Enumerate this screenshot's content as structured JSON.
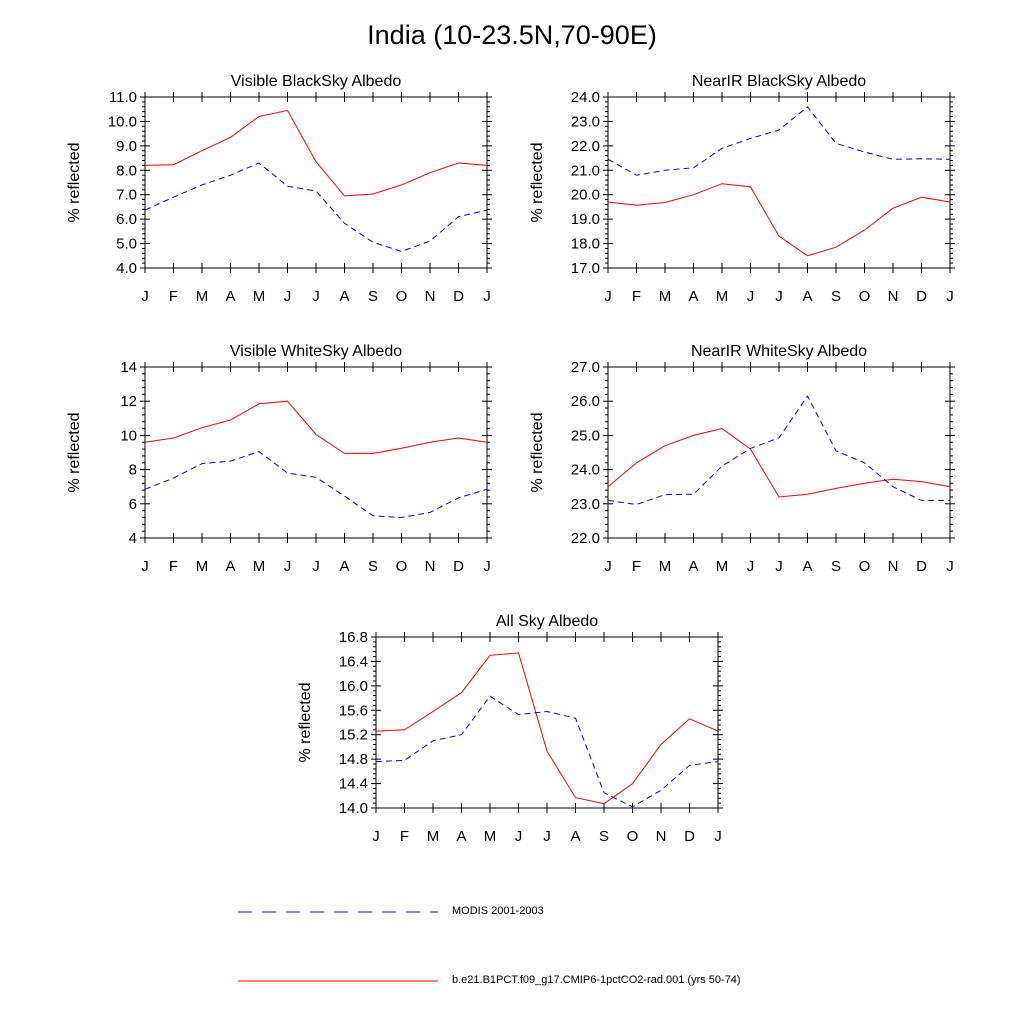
{
  "main_title": "India (10-23.5N,70-90E)",
  "legend": [
    {
      "label": "MODIS 2001-2003",
      "color": "#0000ff",
      "style": "dashed"
    },
    {
      "label": "b.e21.B1PCT.f09_g17.CMIP6-1pctCO2-rad.001 (yrs 50-74)",
      "color": "#ff0000",
      "style": "solid"
    }
  ],
  "chart_data": [
    {
      "type": "line",
      "title": "Visible BlackSky Albedo",
      "ylabel": "% reflected",
      "categories": [
        "J",
        "F",
        "M",
        "A",
        "M",
        "J",
        "J",
        "A",
        "S",
        "O",
        "N",
        "D",
        "J"
      ],
      "ylim": [
        4.0,
        11.0
      ],
      "yticks": [
        "4.0",
        "5.0",
        "6.0",
        "7.0",
        "8.0",
        "9.0",
        "10.0",
        "11.0"
      ],
      "series": [
        {
          "style": "solid",
          "color": "#ff0000",
          "values": [
            8.2,
            8.23,
            8.8,
            9.35,
            10.2,
            10.45,
            8.35,
            6.95,
            7.03,
            7.4,
            7.9,
            8.3,
            8.2
          ]
        },
        {
          "style": "dashed",
          "color": "#0000ff",
          "values": [
            6.37,
            6.9,
            7.4,
            7.8,
            8.3,
            7.35,
            7.15,
            5.83,
            5.05,
            4.68,
            5.1,
            6.1,
            6.37
          ]
        }
      ]
    },
    {
      "type": "line",
      "title": "NearIR BlackSky Albedo",
      "ylabel": "% reflected",
      "categories": [
        "J",
        "F",
        "M",
        "A",
        "M",
        "J",
        "J",
        "A",
        "S",
        "O",
        "N",
        "D",
        "J"
      ],
      "ylim": [
        17.0,
        24.0
      ],
      "yticks": [
        "17.0",
        "18.0",
        "19.0",
        "20.0",
        "21.0",
        "22.0",
        "23.0",
        "24.0"
      ],
      "series": [
        {
          "style": "solid",
          "color": "#ff0000",
          "values": [
            19.7,
            19.57,
            19.68,
            20.0,
            20.45,
            20.32,
            18.3,
            17.5,
            17.85,
            18.55,
            19.45,
            19.9,
            19.7
          ]
        },
        {
          "style": "dashed",
          "color": "#0000ff",
          "values": [
            21.45,
            20.8,
            21.0,
            21.1,
            21.9,
            22.3,
            22.65,
            23.6,
            22.1,
            21.75,
            21.45,
            21.47,
            21.45
          ]
        }
      ]
    },
    {
      "type": "line",
      "title": "Visible WhiteSky Albedo",
      "ylabel": "% reflected",
      "categories": [
        "J",
        "F",
        "M",
        "A",
        "M",
        "J",
        "J",
        "A",
        "S",
        "O",
        "N",
        "D",
        "J"
      ],
      "ylim": [
        4,
        14
      ],
      "yticks": [
        "4",
        "6",
        "8",
        "10",
        "12",
        "14"
      ],
      "series": [
        {
          "style": "solid",
          "color": "#ff0000",
          "values": [
            9.6,
            9.85,
            10.45,
            10.9,
            11.85,
            12.0,
            10.05,
            8.95,
            8.95,
            9.25,
            9.6,
            9.85,
            9.6
          ]
        },
        {
          "style": "dashed",
          "color": "#0000ff",
          "values": [
            6.85,
            7.5,
            8.35,
            8.5,
            9.05,
            7.8,
            7.55,
            6.45,
            5.3,
            5.2,
            5.5,
            6.35,
            6.85
          ]
        }
      ]
    },
    {
      "type": "line",
      "title": "NearIR WhiteSky Albedo",
      "ylabel": "% reflected",
      "categories": [
        "J",
        "F",
        "M",
        "A",
        "M",
        "J",
        "J",
        "A",
        "S",
        "O",
        "N",
        "D",
        "J"
      ],
      "ylim": [
        22.0,
        27.0
      ],
      "yticks": [
        "22.0",
        "23.0",
        "24.0",
        "25.0",
        "26.0",
        "27.0"
      ],
      "series": [
        {
          "style": "solid",
          "color": "#ff0000",
          "values": [
            23.5,
            24.2,
            24.7,
            25.0,
            25.2,
            24.6,
            23.2,
            23.28,
            23.45,
            23.6,
            23.72,
            23.65,
            23.5
          ]
        },
        {
          "style": "dashed",
          "color": "#0000ff",
          "values": [
            23.1,
            22.98,
            23.27,
            23.28,
            24.1,
            24.62,
            24.93,
            26.15,
            24.55,
            24.2,
            23.5,
            23.1,
            23.1
          ]
        }
      ]
    },
    {
      "type": "line",
      "title": "All Sky Albedo",
      "ylabel": "% reflected",
      "categories": [
        "J",
        "F",
        "M",
        "A",
        "M",
        "J",
        "J",
        "A",
        "S",
        "O",
        "N",
        "D",
        "J"
      ],
      "ylim": [
        14.0,
        16.8
      ],
      "yticks": [
        "14.0",
        "14.4",
        "14.8",
        "15.2",
        "15.6",
        "16.0",
        "16.4",
        "16.8"
      ],
      "series": [
        {
          "style": "solid",
          "color": "#ff0000",
          "values": [
            15.26,
            15.28,
            15.58,
            15.89,
            16.5,
            16.54,
            14.93,
            14.17,
            14.07,
            14.4,
            15.04,
            15.46,
            15.26
          ]
        },
        {
          "style": "dashed",
          "color": "#0000ff",
          "values": [
            14.76,
            14.78,
            15.1,
            15.2,
            15.83,
            15.53,
            15.58,
            15.47,
            14.25,
            14.02,
            14.29,
            14.7,
            14.76
          ]
        }
      ]
    }
  ]
}
